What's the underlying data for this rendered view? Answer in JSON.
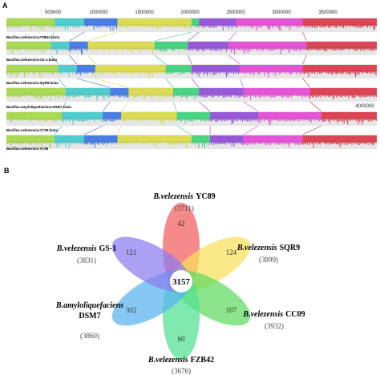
{
  "panel_a": {
    "letter": "A",
    "axis_ticks": [
      "500000",
      "1000000",
      "1500000",
      "2000000",
      "2500000",
      "3000000",
      "3500000"
    ],
    "last_tick": "4000000",
    "genomes": [
      "Bacillus.velezensis.FZB42.fasta",
      "Bacillus.velezensis.GS-1.fasta",
      "Bacillus.velezensis.SQR9.fasta",
      "Bacillus.amyloliquefaciens.DSM7.fasta",
      "Bacillus.velezensis.CC09.fasta",
      "Bacillus.velezensis.YC89"
    ],
    "block_colors": [
      "#9fd63a",
      "#36c7c7",
      "#2f6be0",
      "#d8d83a",
      "#2bd06f",
      "#8a3fd6",
      "#e23bd0",
      "#d8283a"
    ]
  },
  "panel_b": {
    "letter": "B",
    "core_count": "3157",
    "petals": [
      {
        "species": "B.velezensis",
        "strain": "YC89",
        "total": "(3711)",
        "unique": "42",
        "color": "#f25c5c"
      },
      {
        "species": "B.velezensis",
        "strain": "SQR9",
        "total": "(3899)",
        "unique": "124",
        "color": "#f7e15a"
      },
      {
        "species": "B.velezensis",
        "strain": "CC09",
        "total": "(3932)",
        "unique": "107",
        "color": "#5fd95f"
      },
      {
        "species": "B.velezensis",
        "strain": "FZB42",
        "total": "(3676)",
        "unique": "60",
        "color": "#4fe090"
      },
      {
        "species": "B.amyloliquefaciens",
        "strain": "DSM7",
        "total": "(3860)",
        "unique": "302",
        "color": "#57b3ee"
      },
      {
        "species": "B.velezensis",
        "strain": "GS-1",
        "total": "(3831)",
        "unique": "121",
        "color": "#8a7cf0"
      }
    ]
  }
}
